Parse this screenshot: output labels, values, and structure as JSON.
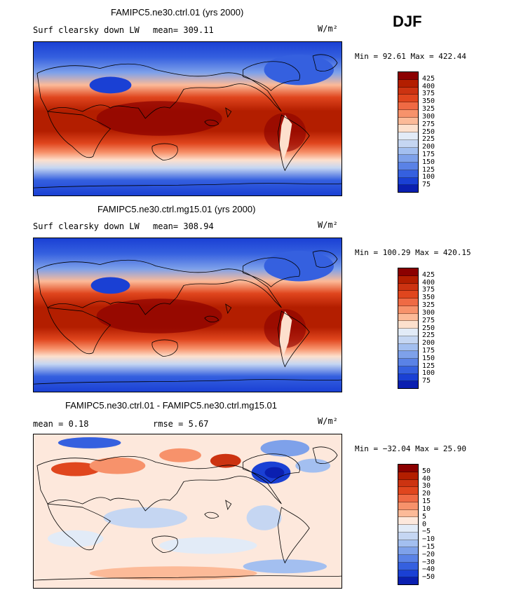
{
  "season": "DJF",
  "panels": [
    {
      "title": "FAMIPC5.ne30.ctrl.01 (yrs 2000)",
      "left_label": "Surf clearsky down LW",
      "stat": "mean= 309.11",
      "units": "W/m²",
      "minmax": "Min =  92.61 Max = 422.44",
      "kind": "field",
      "colorbar": {
        "levels": [
          "425",
          "400",
          "375",
          "350",
          "325",
          "300",
          "275",
          "250",
          "225",
          "200",
          "175",
          "150",
          "125",
          "100",
          "75"
        ],
        "colors": [
          "#8b0000",
          "#b31e00",
          "#cc3311",
          "#e0461e",
          "#ef6a44",
          "#f7926b",
          "#fcba98",
          "#fde0cd",
          "#e2ebf7",
          "#c5d6f2",
          "#a3bff0",
          "#7ea1ea",
          "#5a82e6",
          "#3560df",
          "#1a40d4",
          "#0a1fb0"
        ]
      }
    },
    {
      "title": "FAMIPC5.ne30.ctrl.mg15.01 (yrs 2000)",
      "left_label": "Surf clearsky down LW",
      "stat": "mean= 308.94",
      "units": "W/m²",
      "minmax": "Min = 100.29 Max = 420.15",
      "kind": "field",
      "colorbar": {
        "levels": [
          "425",
          "400",
          "375",
          "350",
          "325",
          "300",
          "275",
          "250",
          "225",
          "200",
          "175",
          "150",
          "125",
          "100",
          "75"
        ],
        "colors": [
          "#8b0000",
          "#b31e00",
          "#cc3311",
          "#e0461e",
          "#ef6a44",
          "#f7926b",
          "#fcba98",
          "#fde0cd",
          "#e2ebf7",
          "#c5d6f2",
          "#a3bff0",
          "#7ea1ea",
          "#5a82e6",
          "#3560df",
          "#1a40d4",
          "#0a1fb0"
        ]
      }
    },
    {
      "title": "FAMIPC5.ne30.ctrl.01 - FAMIPC5.ne30.ctrl.mg15.01",
      "left_label": "mean =    0.18",
      "stat": "rmse =    5.67",
      "units": "W/m²",
      "minmax": "Min = −32.04 Max =  25.90",
      "kind": "diff",
      "colorbar": {
        "levels": [
          "50",
          "40",
          "30",
          "20",
          "15",
          "10",
          "5",
          "0",
          "−5",
          "−10",
          "−15",
          "−20",
          "−30",
          "−40",
          "−50"
        ],
        "colors": [
          "#8b0000",
          "#b31e00",
          "#cc3311",
          "#e0461e",
          "#ef6a44",
          "#f7926b",
          "#fcba98",
          "#fde8dc",
          "#e2ebf7",
          "#c5d6f2",
          "#a3bff0",
          "#7ea1ea",
          "#5a82e6",
          "#3560df",
          "#1a40d4",
          "#0a1fb0"
        ]
      }
    }
  ]
}
